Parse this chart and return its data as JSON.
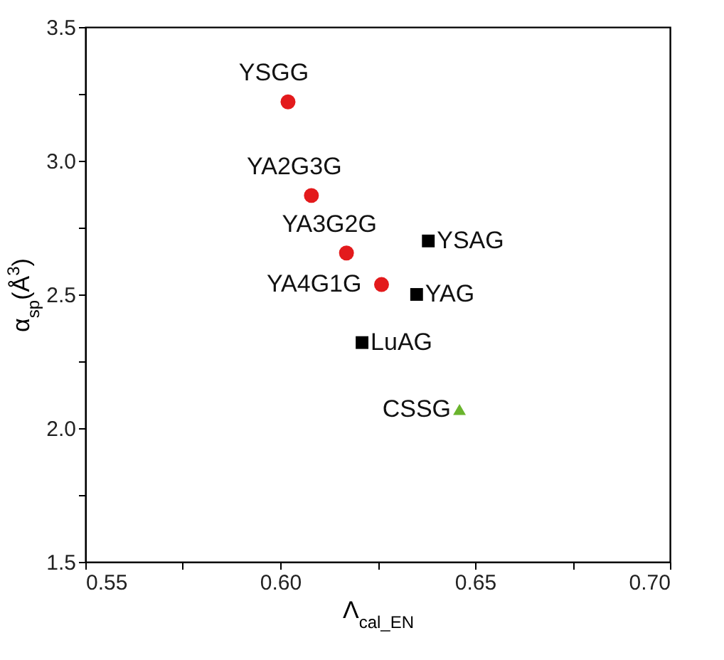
{
  "chart_data": {
    "type": "scatter",
    "xlabel": "Λ$_{cal_EN}$",
    "ylabel": "α$_{sp}$(Å$^{3}$)",
    "xlim": [
      0.55,
      0.7
    ],
    "ylim": [
      1.5,
      3.5
    ],
    "xticks": [
      {
        "value": 0.55,
        "label": "0.55"
      },
      {
        "value": 0.575,
        "label": null
      },
      {
        "value": 0.6,
        "label": "0.60"
      },
      {
        "value": 0.625,
        "label": null
      },
      {
        "value": 0.65,
        "label": "0.65"
      },
      {
        "value": 0.675,
        "label": null
      },
      {
        "value": 0.7,
        "label": "0.70"
      }
    ],
    "yticks": [
      {
        "value": 1.5,
        "label": "1.5"
      },
      {
        "value": 1.75,
        "label": null
      },
      {
        "value": 2.0,
        "label": "2.0"
      },
      {
        "value": 2.25,
        "label": null
      },
      {
        "value": 2.5,
        "label": "2.5"
      },
      {
        "value": 2.75,
        "label": null
      },
      {
        "value": 3.0,
        "label": "3.0"
      },
      {
        "value": 3.25,
        "label": null
      },
      {
        "value": 3.5,
        "label": "3.5"
      }
    ],
    "series": [
      {
        "color": "#e31a1c",
        "marker": "circle",
        "x": [
          0.602,
          0.608,
          0.617,
          0.626
        ],
        "values": [
          3.22,
          2.87,
          2.655,
          2.537
        ]
      },
      {
        "color": "#000000",
        "marker": "square",
        "x": [
          0.638,
          0.635,
          0.621
        ],
        "values": [
          2.7,
          2.5,
          2.32
        ]
      },
      {
        "color": "#6ab42d",
        "marker": "triangle",
        "x": [
          0.646
        ],
        "values": [
          2.07
        ]
      }
    ],
    "annotations": [
      {
        "text": "YSGG",
        "x": 0.602,
        "y": 3.22
      },
      {
        "text": "YA2G3G",
        "x": 0.608,
        "y": 2.87
      },
      {
        "text": "YA3G2G",
        "x": 0.617,
        "y": 2.655
      },
      {
        "text": "YA4G1G",
        "x": 0.626,
        "y": 2.537
      },
      {
        "text": "YSAG",
        "x": 0.638,
        "y": 2.7
      },
      {
        "text": "YAG",
        "x": 0.635,
        "y": 2.5
      },
      {
        "text": "LuAG",
        "x": 0.621,
        "y": 2.32
      },
      {
        "text": "CSSG",
        "x": 0.646,
        "y": 2.07
      }
    ]
  }
}
